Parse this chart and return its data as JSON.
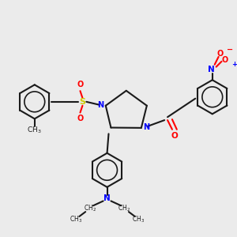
{
  "bg_color": "#ebebeb",
  "bond_color": "#1a1a1a",
  "N_color": "#0000ff",
  "O_color": "#ff0000",
  "S_color": "#cccc00",
  "lw": 1.5,
  "fig_w": 3.0,
  "fig_h": 3.0,
  "dpi": 100,
  "xlim": [
    0,
    300
  ],
  "ylim": [
    0,
    300
  ]
}
